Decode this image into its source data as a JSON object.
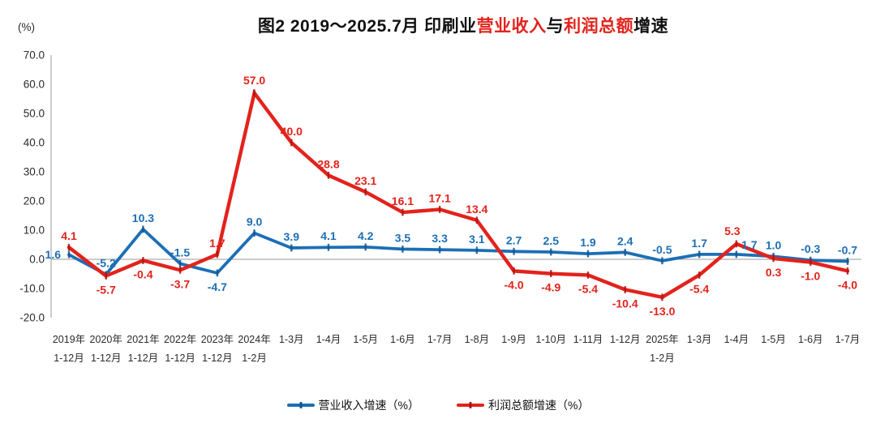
{
  "title": {
    "segments": [
      {
        "text": "图2  2019～2025.7月  印刷业",
        "color": "#111111"
      },
      {
        "text": "营业收入",
        "color": "#e2231c"
      },
      {
        "text": "与",
        "color": "#111111"
      },
      {
        "text": "利润总额",
        "color": "#e2231c"
      },
      {
        "text": "增速",
        "color": "#111111"
      }
    ]
  },
  "chart_data": {
    "type": "line",
    "title": "图2 2019～2025.7月 印刷业营业收入与利润总额增速",
    "y_unit": "(%)",
    "ylim": [
      -20,
      70
    ],
    "y_ticks": [
      70,
      60,
      50,
      40,
      30,
      20,
      10,
      0,
      -10,
      -20
    ],
    "grid": "zero-baseline-only",
    "legend_position": "bottom",
    "categories": [
      [
        "2019年",
        "1-12月"
      ],
      [
        "2020年",
        "1-12月"
      ],
      [
        "2021年",
        "1-12月"
      ],
      [
        "2022年",
        "1-12月"
      ],
      [
        "2023年",
        "1-12月"
      ],
      [
        "2024年",
        "1-2月"
      ],
      [
        "1-3月"
      ],
      [
        "1-4月"
      ],
      [
        "1-5月"
      ],
      [
        "1-6月"
      ],
      [
        "1-7月"
      ],
      [
        "1-8月"
      ],
      [
        "1-9月"
      ],
      [
        "1-10月"
      ],
      [
        "1-11月"
      ],
      [
        "1-12月"
      ],
      [
        "2025年",
        "1-2月"
      ],
      [
        "1-3月"
      ],
      [
        "1-4月"
      ],
      [
        "1-5月"
      ],
      [
        "1-6月"
      ],
      [
        "1-7月"
      ]
    ],
    "series": [
      {
        "name": "营业收入增速（%）",
        "color": "#1c6fb5",
        "marker_color": "#12568f",
        "values": [
          1.6,
          -5.2,
          10.3,
          -1.5,
          -4.7,
          9.0,
          3.9,
          4.1,
          4.2,
          3.5,
          3.3,
          3.1,
          2.7,
          2.5,
          1.9,
          2.4,
          -0.5,
          1.7,
          1.7,
          1.0,
          -0.3,
          -0.7
        ],
        "label_side": [
          "left",
          "above",
          "above",
          "above",
          "below",
          "above",
          "above",
          "above",
          "above",
          "above",
          "above",
          "above",
          "above",
          "above",
          "above",
          "above",
          "above",
          "above",
          "above-right",
          "above",
          "above",
          "above"
        ]
      },
      {
        "name": "利润总额增速（%）",
        "color": "#e2231c",
        "marker_color": "#b01212",
        "values": [
          4.1,
          -5.7,
          -0.4,
          -3.7,
          1.7,
          57.0,
          40.0,
          28.8,
          23.1,
          16.1,
          17.1,
          13.4,
          -4.0,
          -4.9,
          -5.4,
          -10.4,
          -13.0,
          -5.4,
          5.3,
          0.3,
          -1.0,
          -4.0
        ],
        "label_side": [
          "above",
          "below",
          "below",
          "below",
          "above",
          "above",
          "above",
          "above",
          "above",
          "above",
          "above",
          "above",
          "below",
          "below",
          "below",
          "below",
          "below",
          "below",
          "above",
          "below",
          "below",
          "below"
        ]
      }
    ]
  }
}
